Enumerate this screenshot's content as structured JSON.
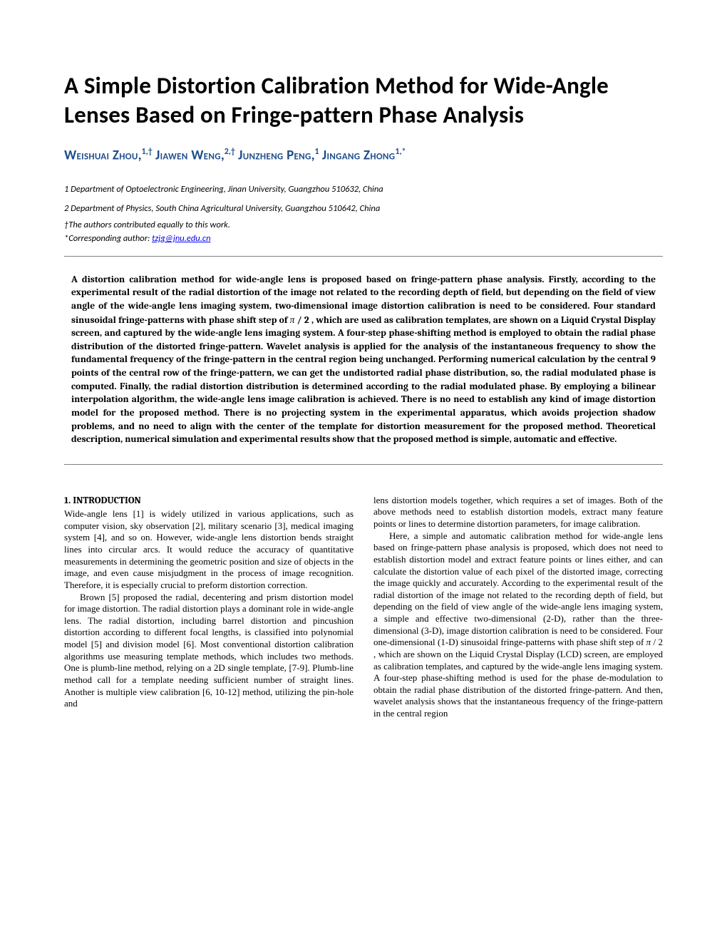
{
  "title": "A Simple Distortion Calibration Method for Wide-Angle Lenses Based on Fringe-pattern Phase Analysis",
  "authors_html": "Weishuai Zhou,<sup>1,†</sup> Jiawen Weng,<sup>2,†</sup> Junzheng Peng,<sup>1</sup> Jingang Zhong<sup>1,*</sup>",
  "affiliations": {
    "a1": "1 Department of Optoelectronic Engineering, Jinan University, Guangzhou 510632, China",
    "a2": "2 Department of Physics, South China Agricultural University, Guangzhou 510642, China",
    "note1": "†The authors contributed equally to this work.",
    "note2_prefix": "*Corresponding author: ",
    "email": "tzjg@jnu.edu.cn"
  },
  "abstract": "A distortion calibration method for wide-angle lens is proposed based on fringe-pattern phase analysis. Firstly, according to the experimental result of the radial distortion of the image not related to the recording depth of field, but depending on the field of view angle of the wide-angle lens imaging system, two-dimensional image distortion calibration is need to be considered. Four standard sinusoidal fringe-patterns with phase shift step of π / 2 , which are used as calibration templates, are shown on a Liquid Crystal Display screen, and captured by the wide-angle lens imaging system. A four-step phase-shifting method is employed to obtain the radial phase distribution of the distorted fringe-pattern. Wavelet analysis is applied for the analysis of the instantaneous frequency to show the fundamental frequency of the fringe-pattern in the central region being unchanged. Performing numerical calculation by the central 9 points of the central row of the fringe-pattern, we can get the undistorted radial phase distribution, so, the radial modulated phase is computed. Finally, the radial distortion distribution is determined according to the radial modulated phase. By employing a bilinear interpolation algorithm, the wide-angle lens image calibration is achieved. There is no need to establish any kind of image distortion model for the proposed method. There is no projecting system in the experimental apparatus, which avoids projection shadow problems, and no need to align with the center of the template for distortion measurement for the proposed method. Theoretical description, numerical simulation and experimental results show that the proposed method is simple, automatic and effective.",
  "section1_head": "1. INTRODUCTION",
  "section1_p1": "Wide-angle lens [1] is widely utilized in various applications, such as computer vision, sky observation [2], military scenario [3], medical imaging system [4], and so on. However, wide-angle lens distortion bends straight lines into circular arcs. It would reduce the accuracy of quantitative measurements in determining the geometric position and size of objects in the image, and even cause misjudgment in the process of image recognition. Therefore, it is especially crucial to preform distortion correction.",
  "section1_p2": "Brown [5] proposed the radial, decentering and prism distortion model for image distortion. The radial distortion plays a dominant role in wide-angle lens. The radial distortion, including barrel distortion and pincushion distortion according to different focal lengths, is classified into polynomial model [5] and division model [6]. Most conventional distortion calibration algorithms use measuring template methods, which includes two methods. One is plumb-line method, relying on a 2D single template, [7-9]. Plumb-line method call for a template needing sufficient number of straight lines. Another is multiple view calibration [6, 10-12] method, utilizing the pin-hole and",
  "section1_p3": "lens distortion models together, which requires a set of images. Both of the above methods need to establish distortion models, extract many feature points or lines to determine distortion parameters, for image calibration.",
  "section1_p4": "Here, a simple and automatic calibration method for wide-angle lens based on fringe-pattern phase analysis is proposed, which does not need to establish distortion model and extract feature points or lines either, and can calculate the distortion value of each pixel of the distorted image, correcting the image quickly and accurately. According to the experimental result of the radial distortion of the image not related to the recording depth of field, but depending on the field of view angle of the wide-angle lens imaging system, a simple and effective two-dimensional (2-D), rather than the three-dimensional (3-D), image distortion calibration is need to be considered. Four one-dimensional (1-D) sinusoidal fringe-patterns with phase shift step of π / 2 , which are shown on the Liquid Crystal Display (LCD) screen, are employed as calibration templates, and captured by the wide-angle lens imaging system. A four-step phase-shifting method is used for the phase de-modulation to obtain the radial phase distribution of the distorted fringe-pattern.  And then, wavelet analysis shows that the instantaneous frequency of the fringe-pattern in the central region"
}
